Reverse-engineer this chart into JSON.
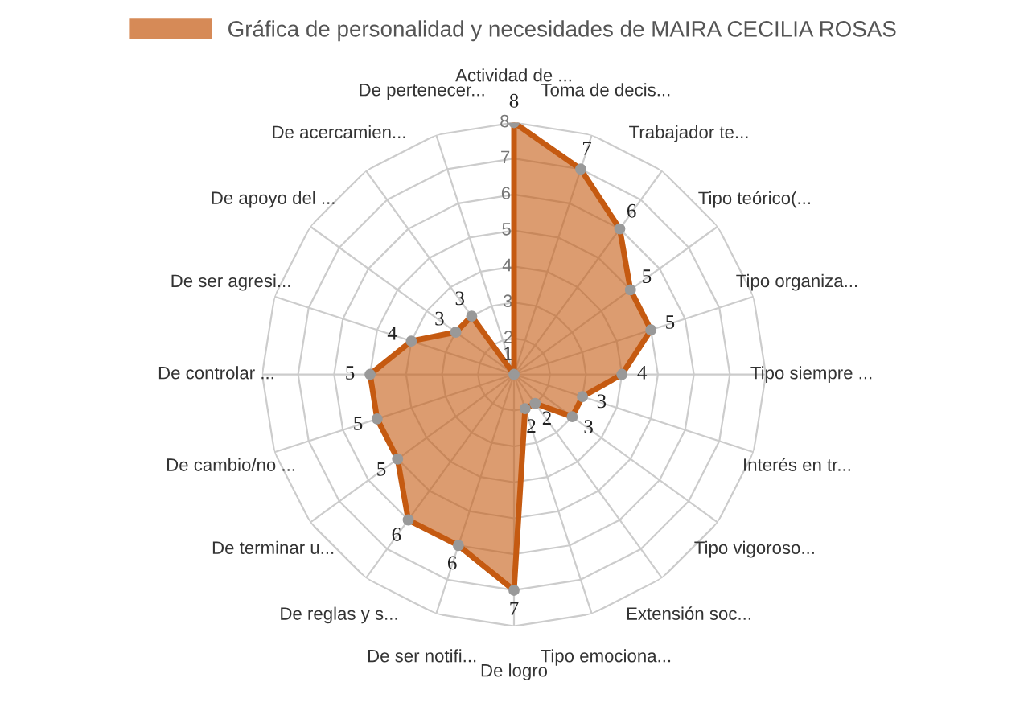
{
  "chart_data": {
    "type": "radar",
    "categories": [
      "Actividad de ...",
      "Toma de decis...",
      "Trabajador te...",
      "Tipo teórico(...",
      "Tipo organiza...",
      "Tipo siempre ...",
      "Interés en tr...",
      "Tipo vigoroso...",
      "Extensión soc...",
      "Tipo emociona...",
      "De logro",
      "De ser notifi...",
      "De reglas y s...",
      "De terminar u...",
      "De cambio/no ...",
      "De controlar ...",
      "De ser agresi...",
      "De apoyo del ...",
      "De acercamien...",
      "De pertenecer..."
    ],
    "series": [
      {
        "name": "Gráfica de personalidad y necesidades de MAIRA CECILIA ROSAS",
        "color": "#c55a11",
        "values": [
          8,
          7,
          6,
          5,
          5,
          4,
          3,
          3,
          2,
          2,
          7,
          6,
          6,
          5,
          5,
          5,
          4,
          3,
          3,
          1
        ]
      }
    ],
    "ylim": [
      1,
      8
    ],
    "yticks": [
      2,
      3,
      4,
      5,
      6,
      7,
      8
    ],
    "data_labels": true,
    "grid": true,
    "legend": "top",
    "marker": "circle"
  }
}
